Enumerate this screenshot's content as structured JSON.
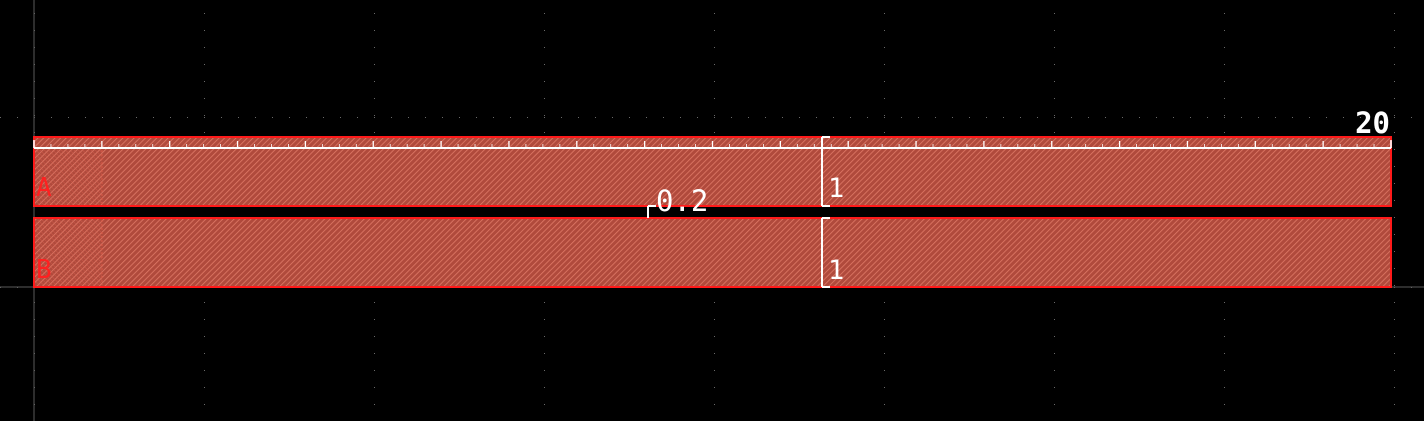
{
  "colors": {
    "background": "#000000",
    "grid_dot": "#6a6a6a",
    "axis_line": "#5a5a5a",
    "layer_fill": "#c85a4a",
    "layer_outline": "#ff1a1a",
    "annotation": "#ffffff",
    "label_text": "#ff2020"
  },
  "rectangles": [
    {
      "name": "A",
      "label": "A",
      "height_label": "1"
    },
    {
      "name": "B",
      "label": "B",
      "height_label": "1"
    }
  ],
  "dimensions": {
    "width_label": "20",
    "spacing_label": "0.2"
  }
}
